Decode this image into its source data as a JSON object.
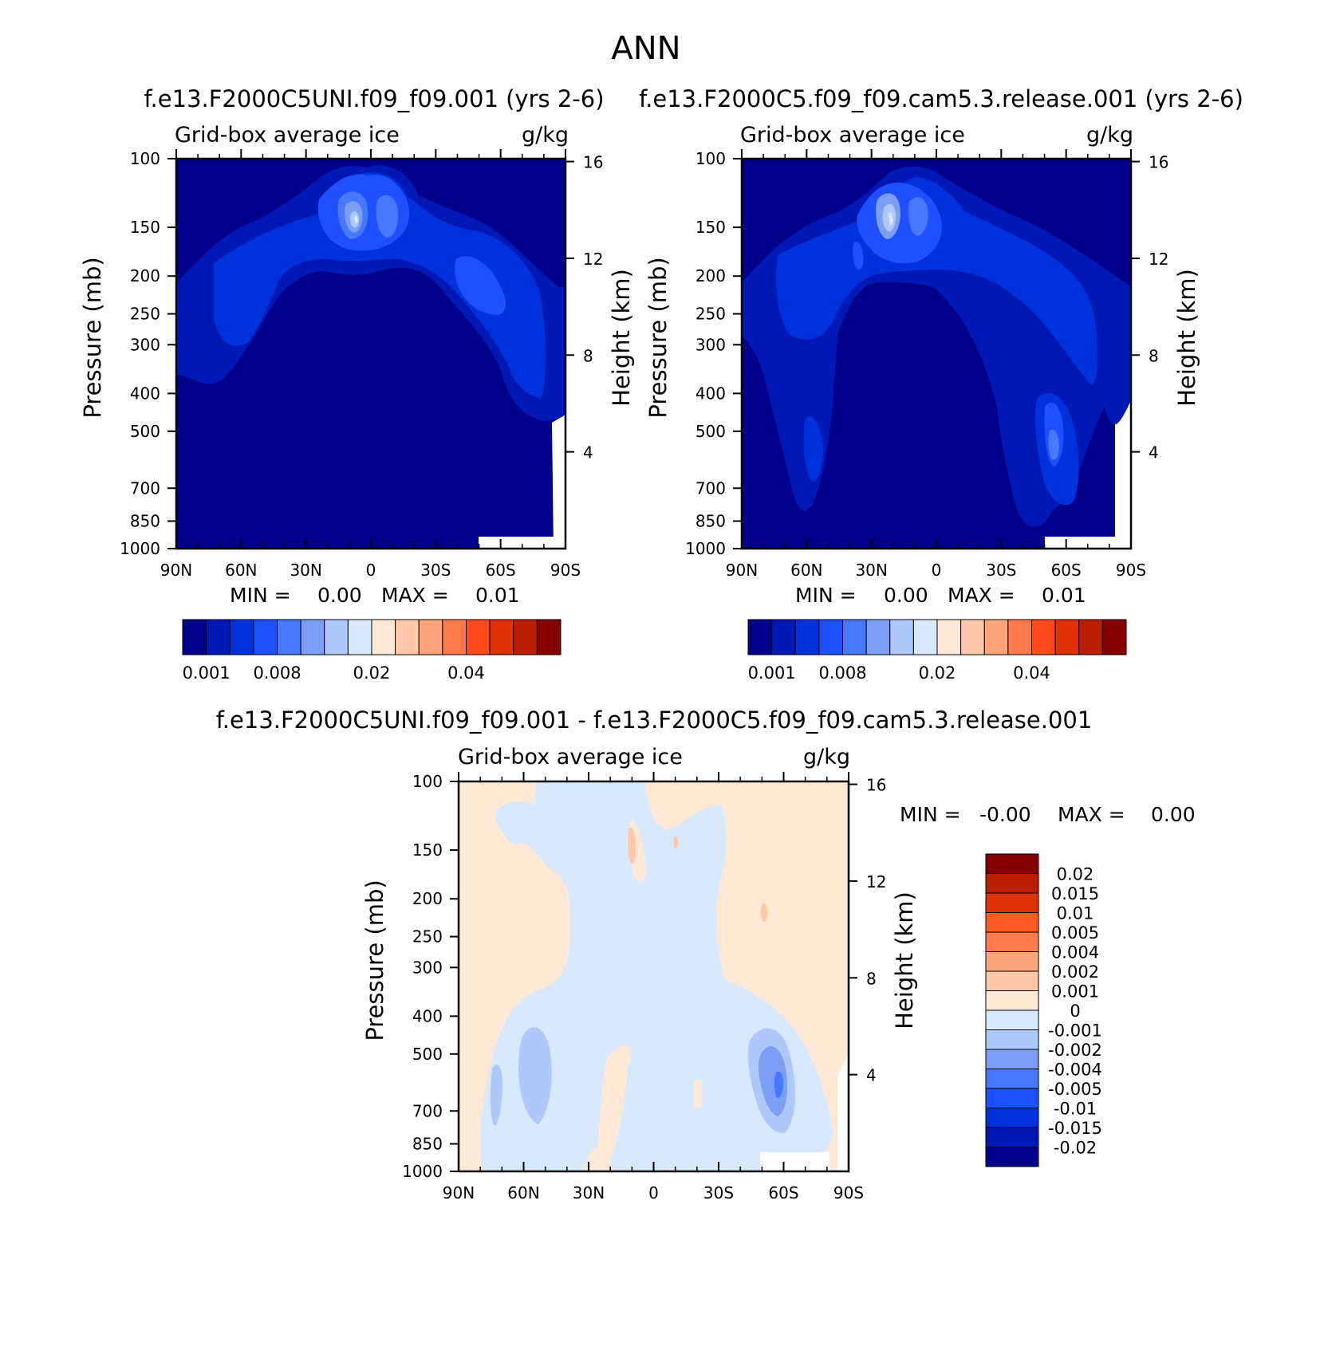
{
  "figure": {
    "title": "ANN"
  },
  "chart_data": [
    {
      "type": "heatmap",
      "title": "f.e13.F2000C5UNI.f09_f09.001 (yrs 2-6)",
      "left_label": "Grid-box average ice",
      "right_label": "g/kg",
      "ylabel": "Pressure (mb)",
      "ylabel2": "Height (km)",
      "x_ticks": [
        "90N",
        "60N",
        "30N",
        "0",
        "30S",
        "60S",
        "90S"
      ],
      "y_ticks": [
        "100",
        "150",
        "200",
        "250",
        "300",
        "400",
        "500",
        "700",
        "850",
        "1000"
      ],
      "height_ticks": [
        "16",
        "12",
        "8",
        "4"
      ],
      "min_label": "MIN =",
      "min_value": "0.00",
      "max_label": "MAX =",
      "max_value": "0.01",
      "colorbar": {
        "orientation": "horizontal",
        "labels": [
          "0.001",
          "0.008",
          "0.02",
          "0.04"
        ]
      }
    },
    {
      "type": "heatmap",
      "title": "f.e13.F2000C5.f09_f09.cam5.3.release.001 (yrs 2-6)",
      "left_label": "Grid-box average ice",
      "right_label": "g/kg",
      "ylabel": "Pressure (mb)",
      "ylabel2": "Height (km)",
      "x_ticks": [
        "90N",
        "60N",
        "30N",
        "0",
        "30S",
        "60S",
        "90S"
      ],
      "y_ticks": [
        "100",
        "150",
        "200",
        "250",
        "300",
        "400",
        "500",
        "700",
        "850",
        "1000"
      ],
      "height_ticks": [
        "16",
        "12",
        "8",
        "4"
      ],
      "min_label": "MIN =",
      "min_value": "0.00",
      "max_label": "MAX =",
      "max_value": "0.01",
      "colorbar": {
        "orientation": "horizontal",
        "labels": [
          "0.001",
          "0.008",
          "0.02",
          "0.04"
        ]
      }
    },
    {
      "type": "heatmap",
      "title": "f.e13.F2000C5UNI.f09_f09.001 - f.e13.F2000C5.f09_f09.cam5.3.release.001",
      "left_label": "Grid-box average ice",
      "right_label": "g/kg",
      "ylabel": "Pressure (mb)",
      "ylabel2": "Height (km)",
      "x_ticks": [
        "90N",
        "60N",
        "30N",
        "0",
        "30S",
        "60S",
        "90S"
      ],
      "y_ticks": [
        "100",
        "150",
        "200",
        "250",
        "300",
        "400",
        "500",
        "700",
        "850",
        "1000"
      ],
      "height_ticks": [
        "16",
        "12",
        "8",
        "4"
      ],
      "min_label": "MIN =",
      "min_value": "-0.00",
      "max_label": "MAX =",
      "max_value": "0.00",
      "colorbar": {
        "orientation": "vertical",
        "labels": [
          "0.02",
          "0.015",
          "0.01",
          "0.005",
          "0.004",
          "0.002",
          "0.001",
          "0",
          "-0.001",
          "-0.002",
          "-0.004",
          "-0.005",
          "-0.01",
          "-0.015",
          "-0.02"
        ]
      }
    }
  ],
  "palettes": {
    "abs": [
      "#00008b",
      "#0018b4",
      "#0032dc",
      "#1f50ff",
      "#4679ff",
      "#7c9ef5",
      "#afc8fb",
      "#d8e9fd",
      "#ffe9d6",
      "#ffc9a9",
      "#ffa57c",
      "#ff7b4c",
      "#ff4a1c",
      "#e0320a",
      "#b91f05",
      "#860000"
    ],
    "diff": [
      "#860000",
      "#b91f05",
      "#e0320a",
      "#ff5a22",
      "#ff7b4c",
      "#ffa57c",
      "#ffc9a9",
      "#ffe9d6",
      "#d8e9fd",
      "#afc8fb",
      "#7c9ef5",
      "#4679ff",
      "#1f50ff",
      "#0032dc",
      "#0018b4",
      "#00008b"
    ]
  }
}
